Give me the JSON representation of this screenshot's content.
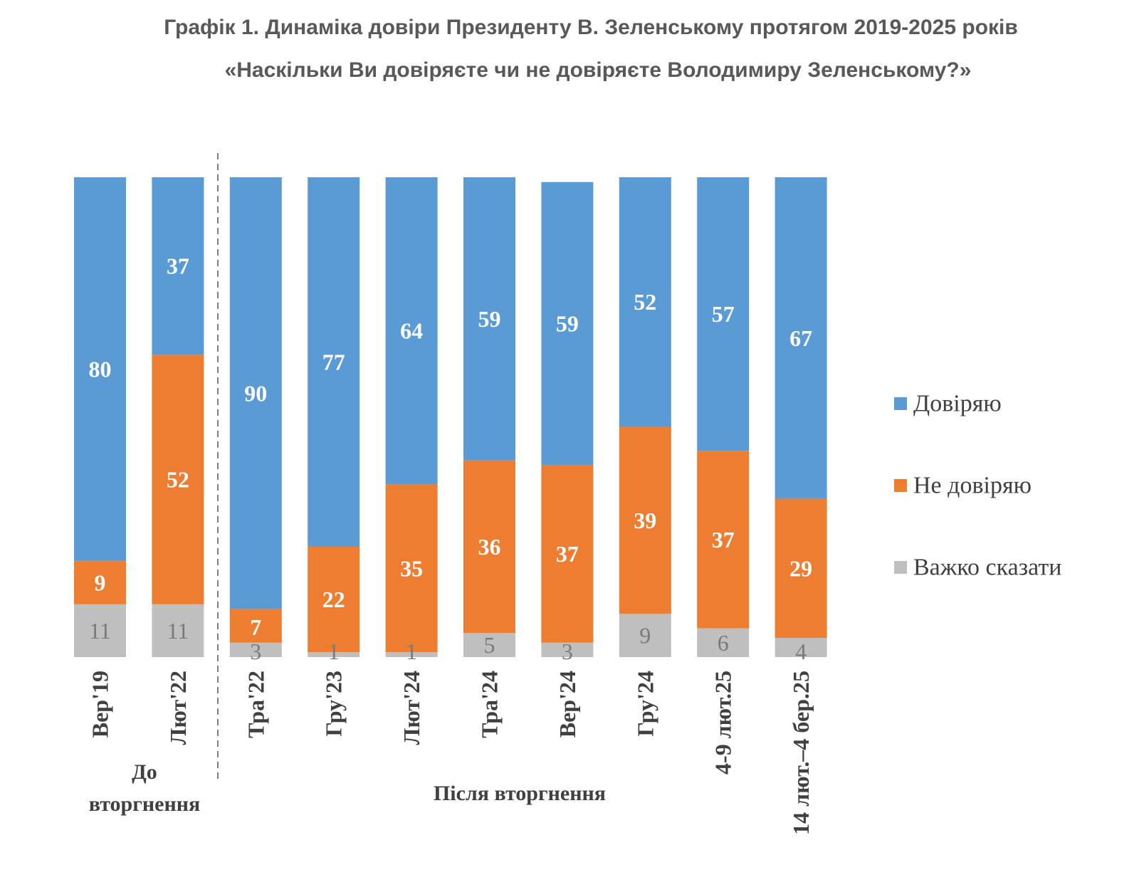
{
  "header": {
    "title_line1": "Графік 1. Динаміка довіри Президенту В. Зеленському протягом 2019-2025 років",
    "title_line2": "«Наскільки Ви довіряєте чи не довіряєте Володимиру Зеленському?»"
  },
  "chart_data": {
    "type": "bar",
    "stacked": true,
    "title": "Графік 1. Динаміка довіри Президенту В. Зеленському протягом 2019-2025 років",
    "subtitle": "«Наскільки Ви довіряєте чи не довіряєте Володимиру Зеленському?»",
    "categories": [
      "Вер'19",
      "Лют'22",
      "Тра'22",
      "Гру'23",
      "Лют'24",
      "Тра'24",
      "Вер'24",
      "Гру'24",
      "4-9 лют.25",
      "14 лют.–4 бер.25"
    ],
    "series": [
      {
        "name": "Довіряю",
        "color": "#5b9bd5",
        "values": [
          80,
          37,
          90,
          77,
          64,
          59,
          59,
          52,
          57,
          67
        ]
      },
      {
        "name": "Не довіряю",
        "color": "#ed7d31",
        "values": [
          9,
          52,
          7,
          22,
          35,
          36,
          37,
          39,
          37,
          29
        ]
      },
      {
        "name": "Важко сказати",
        "color": "#bfbfbf",
        "values": [
          11,
          11,
          3,
          1,
          1,
          5,
          3,
          9,
          6,
          4
        ]
      }
    ],
    "ylim": [
      0,
      100
    ],
    "groups": [
      {
        "label_lines": [
          "До",
          "вторгнення"
        ],
        "from": 0,
        "to": 1
      },
      {
        "label_lines": [
          "Після вторгнення"
        ],
        "from": 2,
        "to": 9
      }
    ],
    "legend_position": "right"
  }
}
